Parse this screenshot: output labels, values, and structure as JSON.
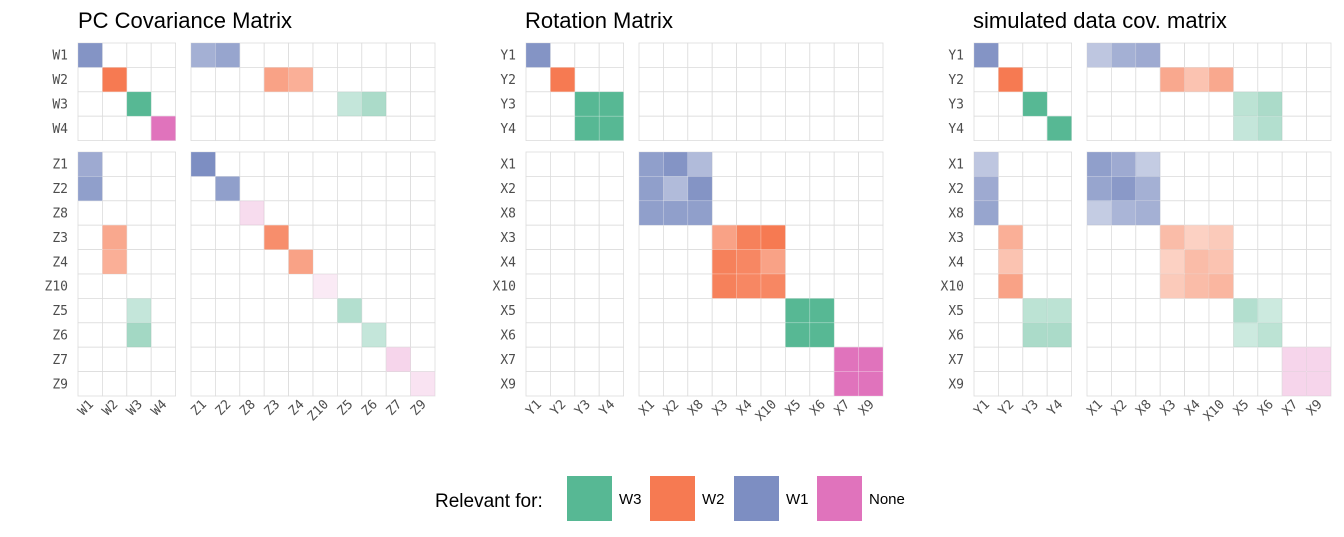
{
  "chart_data": {
    "type": "heatmap",
    "colors": {
      "W3": "#57b894",
      "W2": "#f67a52",
      "W1": "#7d8ec2",
      "None": "#e073bc"
    },
    "legend": {
      "title": "Relevant for:",
      "entries": [
        {
          "key": "W3",
          "label": "W3"
        },
        {
          "key": "W2",
          "label": "W2"
        },
        {
          "key": "W1",
          "label": "W1"
        },
        {
          "key": "None",
          "label": "None"
        }
      ],
      "placement": "bottom"
    },
    "panels": [
      {
        "title": "PC Covariance Matrix",
        "row_groups": [
          [
            "W1",
            "W2",
            "W3",
            "W4"
          ],
          [
            "Z1",
            "Z2",
            "Z8",
            "Z3",
            "Z4",
            "Z10",
            "Z5",
            "Z6",
            "Z7",
            "Z9"
          ]
        ],
        "col_groups": [
          [
            "W1",
            "W2",
            "W3",
            "W4"
          ],
          [
            "Z1",
            "Z2",
            "Z8",
            "Z3",
            "Z4",
            "Z10",
            "Z5",
            "Z6",
            "Z7",
            "Z9"
          ]
        ],
        "cells": [
          [
            "W1",
            "W1",
            "W1",
            0.95
          ],
          [
            "W2",
            "W2",
            "W2",
            1
          ],
          [
            "W3",
            "W3",
            "W3",
            1
          ],
          [
            "W4",
            "W4",
            "None",
            1
          ],
          [
            "W1",
            "Z1",
            "W1",
            0.7
          ],
          [
            "W1",
            "Z2",
            "W1",
            0.8
          ],
          [
            "W2",
            "Z3",
            "W2",
            0.7
          ],
          [
            "W2",
            "Z4",
            "W2",
            0.6
          ],
          [
            "W3",
            "Z5",
            "W3",
            0.35
          ],
          [
            "W3",
            "Z6",
            "W3",
            0.5
          ],
          [
            "Z1",
            "W1",
            "W1",
            0.75
          ],
          [
            "Z2",
            "W1",
            "W1",
            0.85
          ],
          [
            "Z3",
            "W2",
            "W2",
            0.65
          ],
          [
            "Z4",
            "W2",
            "W2",
            0.6
          ],
          [
            "Z5",
            "W3",
            "W3",
            0.35
          ],
          [
            "Z6",
            "W3",
            "W3",
            0.55
          ],
          [
            "Z1",
            "Z1",
            "W1",
            1
          ],
          [
            "Z2",
            "Z2",
            "W1",
            0.85
          ],
          [
            "Z8",
            "Z8",
            "None",
            0.25
          ],
          [
            "Z3",
            "Z3",
            "W2",
            0.85
          ],
          [
            "Z4",
            "Z4",
            "W2",
            0.7
          ],
          [
            "Z10",
            "Z10",
            "None",
            0.15
          ],
          [
            "Z5",
            "Z5",
            "W3",
            0.45
          ],
          [
            "Z6",
            "Z6",
            "W3",
            0.35
          ],
          [
            "Z7",
            "Z7",
            "None",
            0.3
          ],
          [
            "Z9",
            "Z9",
            "None",
            0.2
          ]
        ]
      },
      {
        "title": "Rotation Matrix",
        "row_groups": [
          [
            "Y1",
            "Y2",
            "Y3",
            "Y4"
          ],
          [
            "X1",
            "X2",
            "X8",
            "X3",
            "X4",
            "X10",
            "X5",
            "X6",
            "X7",
            "X9"
          ]
        ],
        "col_groups": [
          [
            "Y1",
            "Y2",
            "Y3",
            "Y4"
          ],
          [
            "X1",
            "X2",
            "X8",
            "X3",
            "X4",
            "X10",
            "X5",
            "X6",
            "X7",
            "X9"
          ]
        ],
        "cells": [
          [
            "Y1",
            "Y1",
            "W1",
            0.95
          ],
          [
            "Y2",
            "Y2",
            "W2",
            1
          ],
          [
            "Y3",
            "Y3",
            "W3",
            1
          ],
          [
            "Y3",
            "Y4",
            "W3",
            1
          ],
          [
            "Y4",
            "Y3",
            "W3",
            1
          ],
          [
            "Y4",
            "Y4",
            "W3",
            1
          ],
          [
            "X1",
            "X1",
            "W1",
            0.85
          ],
          [
            "X1",
            "X2",
            "W1",
            0.95
          ],
          [
            "X1",
            "X8",
            "W1",
            0.6
          ],
          [
            "X2",
            "X1",
            "W1",
            0.85
          ],
          [
            "X2",
            "X2",
            "W1",
            0.6
          ],
          [
            "X2",
            "X8",
            "W1",
            0.95
          ],
          [
            "X8",
            "X1",
            "W1",
            0.85
          ],
          [
            "X8",
            "X2",
            "W1",
            0.85
          ],
          [
            "X8",
            "X8",
            "W1",
            0.85
          ],
          [
            "X3",
            "X3",
            "W2",
            0.7
          ],
          [
            "X3",
            "X4",
            "W2",
            0.95
          ],
          [
            "X3",
            "X10",
            "W2",
            1
          ],
          [
            "X4",
            "X3",
            "W2",
            0.95
          ],
          [
            "X4",
            "X4",
            "W2",
            0.9
          ],
          [
            "X4",
            "X10",
            "W2",
            0.7
          ],
          [
            "X10",
            "X3",
            "W2",
            0.95
          ],
          [
            "X10",
            "X4",
            "W2",
            0.9
          ],
          [
            "X10",
            "X10",
            "W2",
            0.9
          ],
          [
            "X5",
            "X5",
            "W3",
            1
          ],
          [
            "X5",
            "X6",
            "W3",
            1
          ],
          [
            "X6",
            "X5",
            "W3",
            1
          ],
          [
            "X6",
            "X6",
            "W3",
            1
          ],
          [
            "X7",
            "X7",
            "None",
            1
          ],
          [
            "X7",
            "X9",
            "None",
            1
          ],
          [
            "X9",
            "X7",
            "None",
            1
          ],
          [
            "X9",
            "X9",
            "None",
            1
          ]
        ]
      },
      {
        "title": "simulated data cov. matrix",
        "row_groups": [
          [
            "Y1",
            "Y2",
            "Y3",
            "Y4"
          ],
          [
            "X1",
            "X2",
            "X8",
            "X3",
            "X4",
            "X10",
            "X5",
            "X6",
            "X7",
            "X9"
          ]
        ],
        "col_groups": [
          [
            "Y1",
            "Y2",
            "Y3",
            "Y4"
          ],
          [
            "X1",
            "X2",
            "X8",
            "X3",
            "X4",
            "X10",
            "X5",
            "X6",
            "X7",
            "X9"
          ]
        ],
        "cells": [
          [
            "Y1",
            "Y1",
            "W1",
            0.95
          ],
          [
            "Y2",
            "Y2",
            "W2",
            1
          ],
          [
            "Y3",
            "Y3",
            "W3",
            1
          ],
          [
            "Y4",
            "Y4",
            "W3",
            1
          ],
          [
            "Y1",
            "X1",
            "W1",
            0.5
          ],
          [
            "Y1",
            "X2",
            "W1",
            0.7
          ],
          [
            "Y1",
            "X8",
            "W1",
            0.75
          ],
          [
            "Y2",
            "X3",
            "W2",
            0.65
          ],
          [
            "Y2",
            "X4",
            "W2",
            0.45
          ],
          [
            "Y2",
            "X10",
            "W2",
            0.65
          ],
          [
            "Y3",
            "X5",
            "W3",
            0.4
          ],
          [
            "Y3",
            "X6",
            "W3",
            0.5
          ],
          [
            "Y4",
            "X5",
            "W3",
            0.35
          ],
          [
            "Y4",
            "X6",
            "W3",
            0.45
          ],
          [
            "X1",
            "Y1",
            "W1",
            0.5
          ],
          [
            "X2",
            "Y1",
            "W1",
            0.75
          ],
          [
            "X8",
            "Y1",
            "W1",
            0.8
          ],
          [
            "X3",
            "Y2",
            "W2",
            0.6
          ],
          [
            "X4",
            "Y2",
            "W2",
            0.45
          ],
          [
            "X10",
            "Y2",
            "W2",
            0.7
          ],
          [
            "X5",
            "Y3",
            "W3",
            0.4
          ],
          [
            "X5",
            "Y4",
            "W3",
            0.4
          ],
          [
            "X6",
            "Y3",
            "W3",
            0.5
          ],
          [
            "X6",
            "Y4",
            "W3",
            0.5
          ],
          [
            "X1",
            "X1",
            "W1",
            0.85
          ],
          [
            "X1",
            "X2",
            "W1",
            0.75
          ],
          [
            "X1",
            "X8",
            "W1",
            0.45
          ],
          [
            "X2",
            "X1",
            "W1",
            0.8
          ],
          [
            "X2",
            "X2",
            "W1",
            0.9
          ],
          [
            "X2",
            "X8",
            "W1",
            0.7
          ],
          [
            "X8",
            "X1",
            "W1",
            0.45
          ],
          [
            "X8",
            "X2",
            "W1",
            0.65
          ],
          [
            "X8",
            "X8",
            "W1",
            0.7
          ],
          [
            "X3",
            "X3",
            "W2",
            0.5
          ],
          [
            "X3",
            "X4",
            "W2",
            0.35
          ],
          [
            "X3",
            "X10",
            "W2",
            0.4
          ],
          [
            "X4",
            "X3",
            "W2",
            0.35
          ],
          [
            "X4",
            "X4",
            "W2",
            0.5
          ],
          [
            "X4",
            "X10",
            "W2",
            0.45
          ],
          [
            "X10",
            "X3",
            "W2",
            0.4
          ],
          [
            "X10",
            "X4",
            "W2",
            0.5
          ],
          [
            "X10",
            "X10",
            "W2",
            0.55
          ],
          [
            "X5",
            "X5",
            "W3",
            0.45
          ],
          [
            "X5",
            "X6",
            "W3",
            0.3
          ],
          [
            "X6",
            "X5",
            "W3",
            0.3
          ],
          [
            "X6",
            "X6",
            "W3",
            0.4
          ],
          [
            "X7",
            "X7",
            "None",
            0.3
          ],
          [
            "X7",
            "X9",
            "None",
            0.3
          ],
          [
            "X9",
            "X7",
            "None",
            0.3
          ],
          [
            "X9",
            "X9",
            "None",
            0.3
          ]
        ]
      }
    ]
  }
}
